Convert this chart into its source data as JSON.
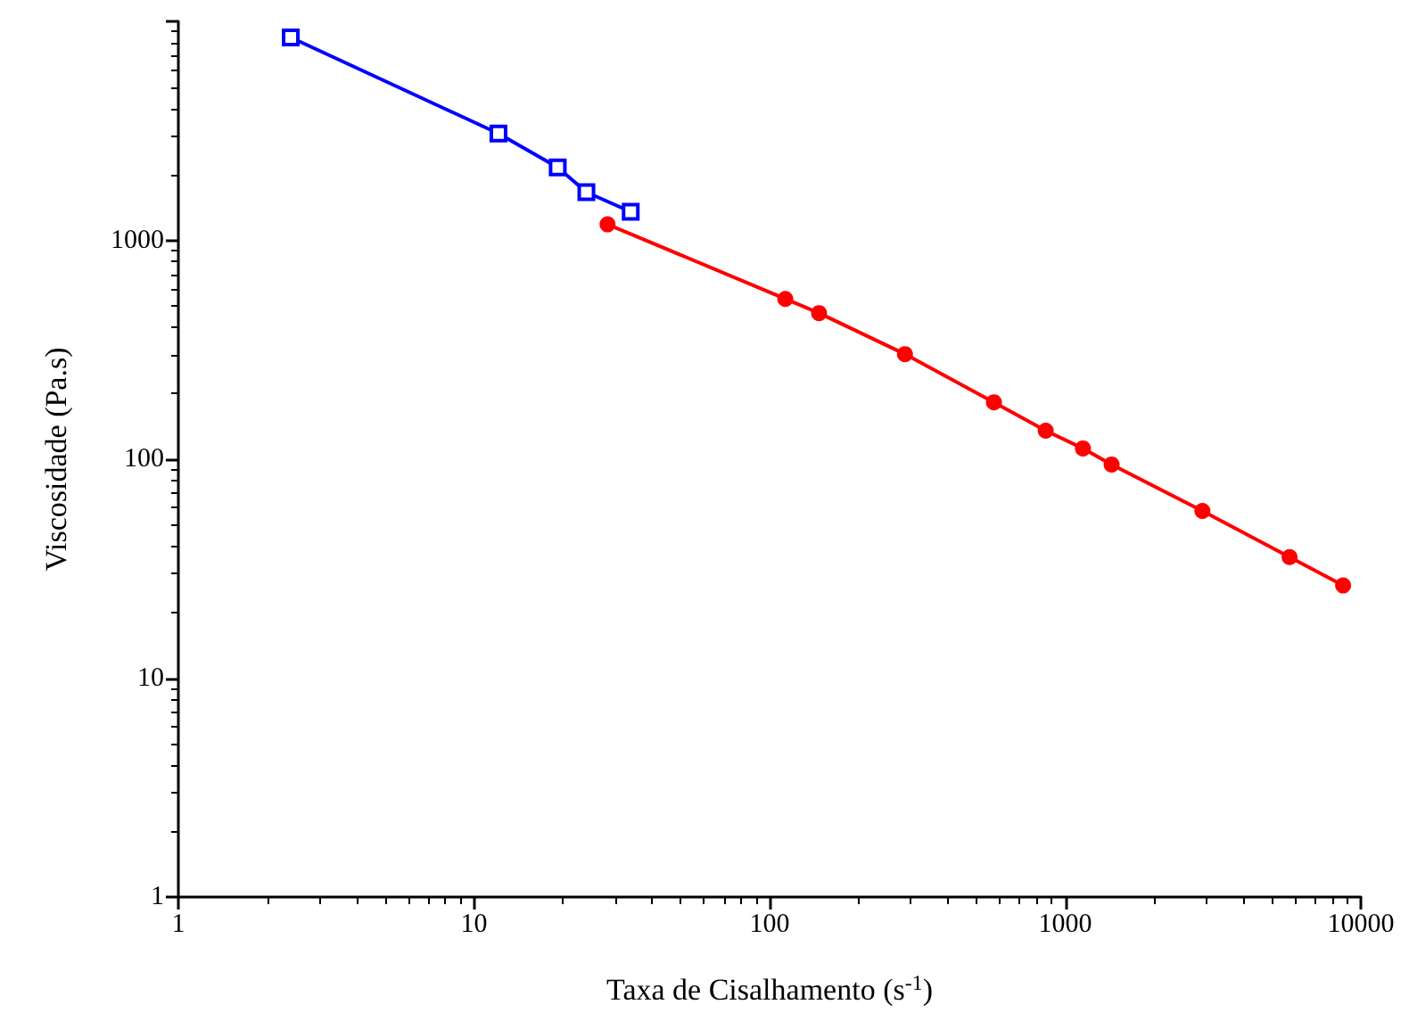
{
  "chart_data": {
    "type": "line",
    "xlabel": "Taxa de Cisalhamento (s$^{-1}$)",
    "ylabel": "Viscosidade (Pa.s)",
    "log": "xy",
    "grid": false,
    "line_style": "solid",
    "xlim": [
      1,
      10000
    ],
    "xticks": [
      1,
      10,
      100,
      1000,
      10000
    ],
    "ylim": [
      1,
      10000
    ],
    "yticks": [
      1,
      10,
      100,
      1000,
      {
        "value": 10000,
        "label": null
      }
    ],
    "series": [
      {
        "color": "#0000ff",
        "marker": "square",
        "x": [
          2.4,
          12.1,
          19.2,
          24.0,
          33.9
        ],
        "values": [
          8450,
          3075,
          2155,
          1660,
          1350
        ]
      },
      {
        "color": "#ff0000",
        "marker": "circle",
        "x": [
          28.3,
          113,
          147,
          287,
          574,
          859,
          1148,
          1435,
          2911,
          5740,
          8710
        ],
        "values": [
          1183,
          540,
          465,
          302,
          182,
          135,
          112,
          94.6,
          58,
          35.7,
          26.5
        ]
      }
    ]
  }
}
